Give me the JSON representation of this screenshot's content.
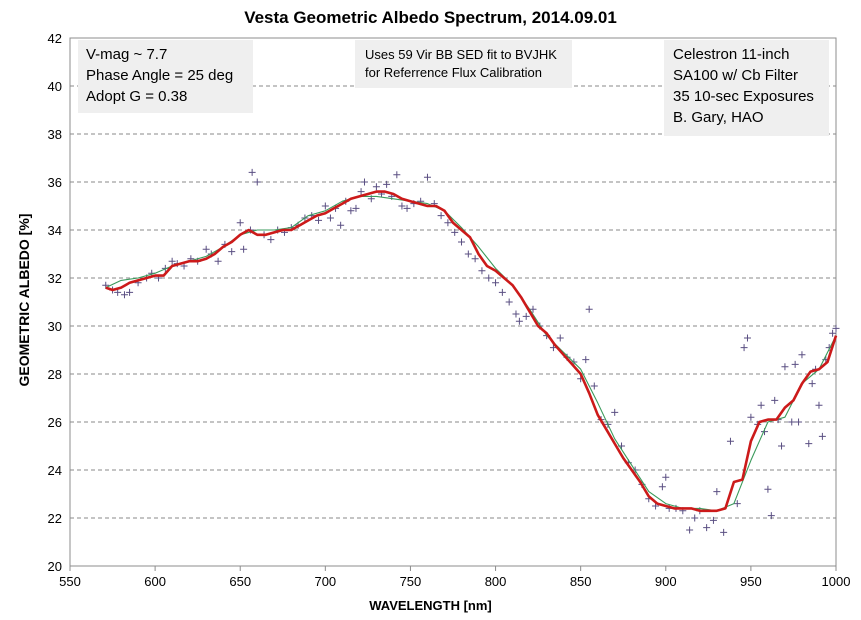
{
  "chart_data": {
    "type": "line",
    "title": "Vesta Geometric Albedo Spectrum, 2014.09.01",
    "xlabel": "WAVELENGTH  [nm]",
    "ylabel": "GEOMETRIC  ALBEDO [%]",
    "xlim": [
      550,
      1000
    ],
    "ylim": [
      20,
      42
    ],
    "xticks": [
      550,
      600,
      650,
      700,
      750,
      800,
      850,
      900,
      950,
      1000
    ],
    "yticks": [
      20,
      22,
      24,
      26,
      28,
      30,
      32,
      34,
      36,
      38,
      40,
      42
    ],
    "grid": "horizontal dashed",
    "annotations": {
      "left": [
        "V-mag ~ 7.7",
        "Phase Angle = 25 deg",
        "Adopt G = 0.38"
      ],
      "middle": [
        "Uses 59  Vir BB SED fit to BVJHK",
        "for  Referrence Flux Calibration"
      ],
      "right": [
        "Celestron 11-inch",
        "SA100 w/ Cb Filter",
        "35 10-sec Exposures",
        "B. Gary, HAO"
      ]
    },
    "series": [
      {
        "style": "scatter-plus",
        "color": "#5a4f82",
        "x": [
          571,
          575,
          578,
          582,
          585,
          590,
          595,
          598,
          602,
          606,
          610,
          613,
          617,
          621,
          625,
          630,
          633,
          637,
          641,
          645,
          650,
          652,
          656,
          657,
          660,
          664,
          668,
          672,
          676,
          680,
          684,
          688,
          692,
          696,
          700,
          703,
          706,
          709,
          712,
          715,
          718,
          721,
          723,
          727,
          730,
          733,
          736,
          739,
          742,
          745,
          748,
          752,
          756,
          760,
          764,
          768,
          772,
          776,
          780,
          784,
          788,
          792,
          796,
          800,
          804,
          808,
          812,
          814,
          818,
          822,
          826,
          830,
          834,
          838,
          842,
          846,
          850,
          853,
          855,
          858,
          862,
          866,
          870,
          874,
          878,
          882,
          886,
          890,
          894,
          898,
          900,
          902,
          906,
          910,
          914,
          917,
          920,
          924,
          928,
          930,
          934,
          938,
          942,
          946,
          948,
          950,
          954,
          956,
          958,
          960,
          962,
          964,
          966,
          968,
          970,
          974,
          976,
          978,
          980,
          984,
          986,
          988,
          990,
          992,
          994,
          996,
          998,
          1000
        ],
        "y": [
          31.7,
          31.5,
          31.4,
          31.3,
          31.4,
          31.8,
          32.0,
          32.2,
          32.0,
          32.4,
          32.7,
          32.6,
          32.5,
          32.8,
          32.7,
          33.2,
          33.0,
          32.7,
          33.4,
          33.1,
          34.3,
          33.2,
          34.0,
          36.4,
          36.0,
          33.8,
          33.6,
          34.0,
          33.9,
          34.1,
          34.2,
          34.5,
          34.6,
          34.4,
          35.0,
          34.5,
          34.9,
          34.2,
          35.2,
          34.8,
          34.9,
          35.6,
          36.0,
          35.3,
          35.8,
          35.5,
          35.9,
          35.4,
          36.3,
          35.0,
          34.9,
          35.1,
          35.2,
          36.2,
          35.1,
          34.6,
          34.3,
          33.9,
          33.5,
          33.0,
          32.8,
          32.3,
          32.0,
          31.8,
          31.4,
          31.0,
          30.5,
          30.2,
          30.4,
          30.7,
          30.0,
          29.6,
          29.1,
          29.5,
          28.7,
          28.5,
          27.8,
          28.6,
          30.7,
          27.5,
          26.1,
          25.9,
          26.4,
          25.0,
          24.3,
          24.0,
          23.4,
          22.8,
          22.5,
          23.3,
          23.7,
          22.4,
          22.4,
          22.3,
          21.5,
          22.0,
          22.3,
          21.6,
          21.9,
          23.1,
          21.4,
          25.2,
          22.6,
          29.1,
          29.5,
          26.2,
          25.9,
          26.7,
          25.6,
          23.2,
          22.1,
          26.9,
          26.1,
          25.0,
          28.3,
          26.0,
          28.4,
          26.0,
          28.8,
          25.1,
          27.6,
          28.2,
          26.7,
          25.4,
          28.6,
          29.1,
          29.7,
          29.9
        ]
      },
      {
        "style": "line",
        "color": "#3a9a5b",
        "x": [
          571,
          580,
          590,
          600,
          610,
          620,
          630,
          640,
          650,
          660,
          670,
          680,
          690,
          700,
          710,
          720,
          730,
          740,
          750,
          760,
          770,
          780,
          790,
          800,
          810,
          820,
          830,
          840,
          850,
          860,
          870,
          880,
          890,
          900,
          910,
          920,
          930,
          940,
          950,
          960,
          970,
          980,
          990,
          1000
        ],
        "y": [
          31.6,
          31.9,
          32.0,
          32.2,
          32.5,
          32.7,
          32.9,
          33.3,
          33.8,
          34.0,
          34.0,
          34.1,
          34.6,
          34.8,
          35.2,
          35.4,
          35.4,
          35.3,
          35.2,
          35.1,
          34.8,
          34.1,
          33.3,
          32.4,
          31.7,
          30.7,
          29.6,
          28.9,
          28.2,
          26.8,
          25.3,
          24.2,
          23.1,
          22.6,
          22.4,
          22.4,
          22.3,
          22.6,
          24.4,
          26.0,
          26.2,
          27.6,
          28.2,
          29.6
        ]
      },
      {
        "style": "line",
        "color": "#cc1a1a",
        "x": [
          571,
          575,
          580,
          585,
          590,
          595,
          600,
          605,
          610,
          615,
          620,
          625,
          630,
          635,
          640,
          645,
          650,
          655,
          660,
          665,
          670,
          675,
          680,
          685,
          690,
          695,
          700,
          705,
          710,
          715,
          720,
          725,
          730,
          735,
          740,
          745,
          750,
          755,
          760,
          765,
          770,
          775,
          780,
          785,
          790,
          795,
          800,
          805,
          810,
          815,
          820,
          825,
          830,
          835,
          840,
          845,
          850,
          855,
          860,
          865,
          870,
          875,
          880,
          885,
          890,
          895,
          900,
          905,
          910,
          915,
          920,
          925,
          930,
          935,
          940,
          945,
          950,
          955,
          960,
          965,
          970,
          975,
          980,
          985,
          990,
          995,
          1000
        ],
        "y": [
          31.6,
          31.5,
          31.6,
          31.8,
          31.9,
          32.0,
          32.1,
          32.1,
          32.5,
          32.6,
          32.7,
          32.7,
          32.8,
          33.0,
          33.3,
          33.5,
          33.8,
          34.0,
          33.8,
          33.8,
          33.9,
          34.0,
          34.0,
          34.2,
          34.4,
          34.6,
          34.7,
          34.9,
          35.1,
          35.3,
          35.4,
          35.5,
          35.6,
          35.6,
          35.5,
          35.3,
          35.2,
          35.1,
          35.0,
          35.0,
          34.8,
          34.3,
          34.0,
          33.7,
          33.0,
          32.5,
          32.3,
          32.0,
          31.7,
          31.2,
          30.6,
          30.0,
          29.7,
          29.2,
          28.8,
          28.4,
          28.0,
          27.2,
          26.3,
          25.7,
          25.1,
          24.5,
          24.0,
          23.5,
          22.9,
          22.6,
          22.5,
          22.4,
          22.4,
          22.4,
          22.3,
          22.3,
          22.3,
          22.4,
          23.5,
          23.6,
          25.2,
          26.0,
          26.1,
          26.1,
          26.6,
          26.9,
          27.6,
          28.1,
          28.2,
          28.5,
          29.6
        ]
      }
    ]
  }
}
